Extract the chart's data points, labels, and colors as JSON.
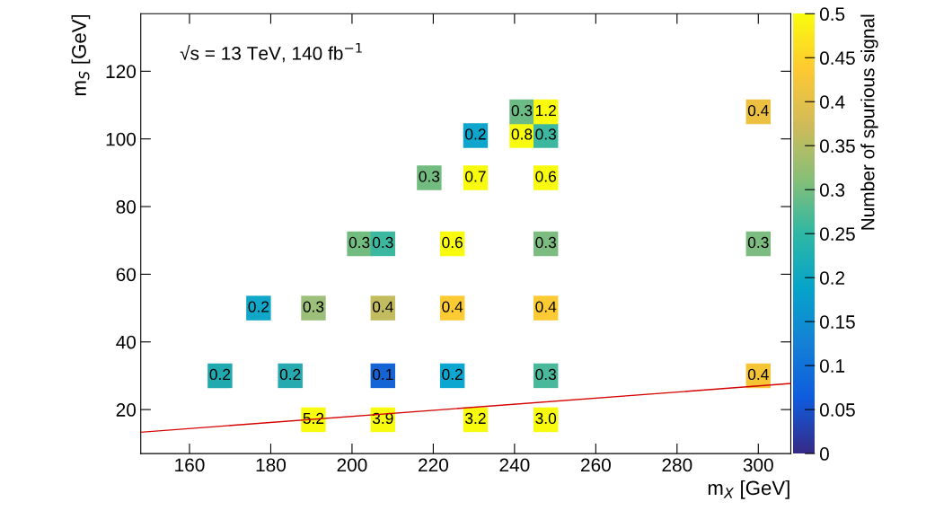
{
  "chart_data": {
    "type": "scatter",
    "xlabel": "m$_{X}$ [GeV]",
    "ylabel": "m$_{S}$ [GeV]",
    "clabel": "Number of spurious signal",
    "annotations": [
      "√s = 13 TeV, 140 fb$^{−1}$",
      {
        "text": "0.2",
        "x": 167.5,
        "y": 30
      },
      {
        "text": "0.2",
        "x": 184.8,
        "y": 30
      },
      {
        "text": "0.1",
        "x": 207.6,
        "y": 30
      },
      {
        "text": "0.2",
        "x": 224.7,
        "y": 30
      },
      {
        "text": "0.3",
        "x": 247.7,
        "y": 30
      },
      {
        "text": "0.4",
        "x": 300,
        "y": 30
      },
      {
        "text": "0.2",
        "x": 177,
        "y": 50
      },
      {
        "text": "0.3",
        "x": 190.5,
        "y": 50
      },
      {
        "text": "0.4",
        "x": 207.6,
        "y": 50
      },
      {
        "text": "0.4",
        "x": 224.7,
        "y": 50
      },
      {
        "text": "0.4",
        "x": 247.7,
        "y": 50
      },
      {
        "text": "0.3",
        "x": 201.8,
        "y": 69
      },
      {
        "text": "0.3",
        "x": 207.6,
        "y": 69
      },
      {
        "text": "0.6",
        "x": 224.7,
        "y": 69
      },
      {
        "text": "0.3",
        "x": 247.7,
        "y": 69
      },
      {
        "text": "0.3",
        "x": 300,
        "y": 69
      },
      {
        "text": "0.3",
        "x": 219,
        "y": 88.5
      },
      {
        "text": "0.7",
        "x": 230.4,
        "y": 88.5
      },
      {
        "text": "0.6",
        "x": 247.7,
        "y": 88.5
      },
      {
        "text": "0.2",
        "x": 230.4,
        "y": 101
      },
      {
        "text": "0.8",
        "x": 241.8,
        "y": 101
      },
      {
        "text": "0.3",
        "x": 247.7,
        "y": 101
      },
      {
        "text": "0.3",
        "x": 241.8,
        "y": 108
      },
      {
        "text": "1.2",
        "x": 247.7,
        "y": 108
      },
      {
        "text": "0.4",
        "x": 300,
        "y": 108
      },
      {
        "text": "5.2",
        "x": 190.5,
        "y": 17
      },
      {
        "text": "3.9",
        "x": 207.6,
        "y": 17
      },
      {
        "text": "3.2",
        "x": 230.4,
        "y": 17
      },
      {
        "text": "3.0",
        "x": 247.7,
        "y": 17
      }
    ],
    "xlim": [
      148,
      308
    ],
    "xticks": [
      160,
      180,
      200,
      220,
      240,
      260,
      280,
      300
    ],
    "ylim": [
      7,
      137
    ],
    "yticks": [
      20,
      40,
      60,
      80,
      100,
      120
    ],
    "clim": [
      0,
      0.5
    ],
    "cticks": [
      0,
      0.05,
      0.1,
      0.15,
      0.2,
      0.25,
      0.3,
      0.35,
      0.4,
      0.45,
      0.5
    ],
    "series": [
      {
        "marker": "square",
        "x": [
          167.5,
          184.8,
          207.6,
          224.7,
          247.7,
          300,
          177,
          190.5,
          207.6,
          224.7,
          247.7,
          201.8,
          207.6,
          224.7,
          247.7,
          300,
          219,
          230.4,
          247.7,
          230.4,
          241.8,
          247.7,
          241.8,
          247.7,
          300,
          190.5,
          207.6,
          230.4,
          247.7
        ],
        "values": [
          30,
          30,
          30,
          30,
          30,
          30,
          50,
          50,
          50,
          50,
          50,
          69,
          69,
          69,
          69,
          69,
          88.5,
          88.5,
          88.5,
          101,
          101,
          101,
          108,
          108,
          108,
          17,
          17,
          17,
          17
        ],
        "colors": [
          "#20aab0",
          "#26aab0",
          "#1464d6",
          "#0ca7d0",
          "#4ab89a",
          "#f5c535",
          "#11a7c9",
          "#9cc07a",
          "#c2bc5f",
          "#fccb34",
          "#fccb34",
          "#72bc80",
          "#3bb89f",
          "#f9fb0e",
          "#7dbc80",
          "#7dbc80",
          "#73bc80",
          "#f9fb0e",
          "#f9fb0e",
          "#0fa5cc",
          "#f9fb0e",
          "#3db79f",
          "#6cbb85",
          "#f9fb0e",
          "#ecc142",
          "#f9fb0e",
          "#f9fb0e",
          "#f9fb0e",
          "#f9fb0e"
        ]
      },
      {
        "type": "line",
        "color": "#d40000",
        "x": [
          148,
          308
        ],
        "values": [
          13.3,
          27.7
        ],
        "line_style": "solid",
        "marker": "none"
      }
    ]
  }
}
